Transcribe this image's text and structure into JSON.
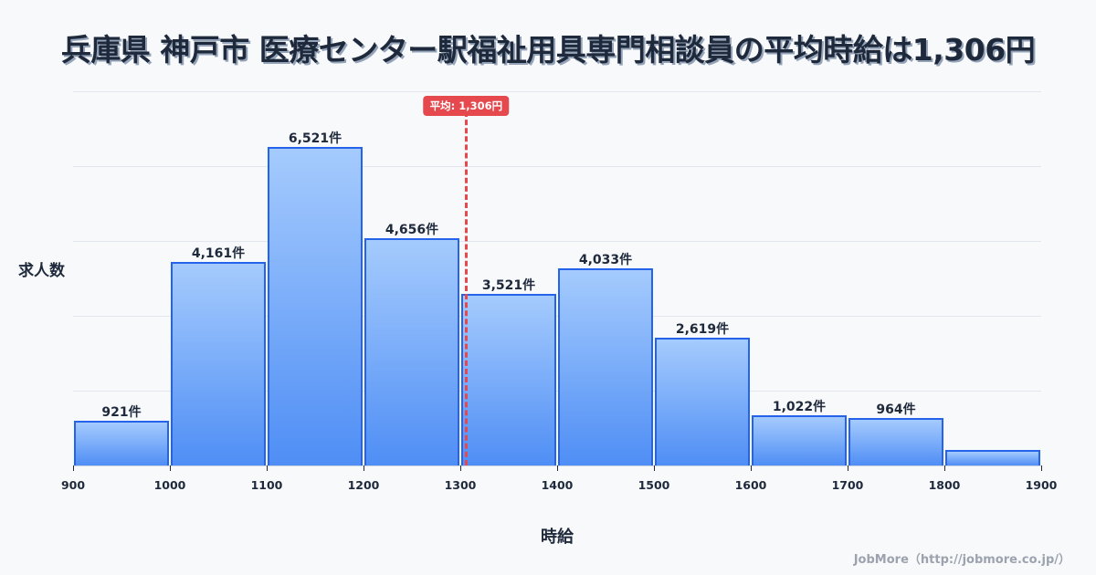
{
  "header": {
    "title": "兵庫県 神戸市 医療センター駅福祉用具専門相談員の平均時給は1,306円"
  },
  "axes": {
    "ylabel": "求人数",
    "xlabel": "時給"
  },
  "mean": {
    "label": "平均: 1,306円",
    "value": 1306,
    "color": "#e5484d"
  },
  "footer": {
    "credit": "JobMore（http://jobmore.co.jp/）"
  },
  "colors": {
    "bar_fill_top": "#a5cbfd",
    "bar_fill_bottom": "#4f8ef5",
    "bar_border": "#2563eb",
    "mean_line": "#e5484d",
    "title_text": "#1e293b"
  },
  "chart_data": {
    "type": "bar",
    "title": "兵庫県 神戸市 医療センター駅福祉用具専門相談員の平均時給は1,306円",
    "xlabel": "時給",
    "ylabel": "求人数",
    "x_ticks": [
      900,
      1000,
      1100,
      1200,
      1300,
      1400,
      1500,
      1600,
      1700,
      1800,
      1900
    ],
    "x_tick_labels": [
      "900",
      "1000",
      "1100",
      "1200",
      "1300",
      "1400",
      "1500",
      "1600",
      "1700",
      "1800",
      "1900"
    ],
    "bins": [
      {
        "from": 900,
        "to": 1000,
        "value": 921,
        "label": "921件"
      },
      {
        "from": 1000,
        "to": 1100,
        "value": 4161,
        "label": "4,161件"
      },
      {
        "from": 1100,
        "to": 1200,
        "value": 6521,
        "label": "6,521件"
      },
      {
        "from": 1200,
        "to": 1300,
        "value": 4656,
        "label": "4,656件"
      },
      {
        "from": 1300,
        "to": 1400,
        "value": 3521,
        "label": "3,521件"
      },
      {
        "from": 1400,
        "to": 1500,
        "value": 4033,
        "label": "4,033件"
      },
      {
        "from": 1500,
        "to": 1600,
        "value": 2619,
        "label": "2,619件"
      },
      {
        "from": 1600,
        "to": 1700,
        "value": 1022,
        "label": "1,022件"
      },
      {
        "from": 1700,
        "to": 1800,
        "value": 964,
        "label": "964件"
      },
      {
        "from": 1800,
        "to": 1900,
        "value": 318,
        "label": ""
      }
    ],
    "categories": [
      "900-1000",
      "1000-1100",
      "1100-1200",
      "1200-1300",
      "1300-1400",
      "1400-1500",
      "1500-1600",
      "1600-1700",
      "1700-1800",
      "1800-1900"
    ],
    "values": [
      921,
      4161,
      6521,
      4656,
      3521,
      4033,
      2619,
      1022,
      964,
      318
    ],
    "xlim": [
      900,
      1900
    ],
    "ylim": [
      0,
      7660
    ],
    "grid": true,
    "annotations": [
      {
        "type": "vline",
        "x": 1306,
        "label": "平均: 1,306円",
        "style": "dashed",
        "color": "#e5484d"
      }
    ],
    "legend": null
  }
}
